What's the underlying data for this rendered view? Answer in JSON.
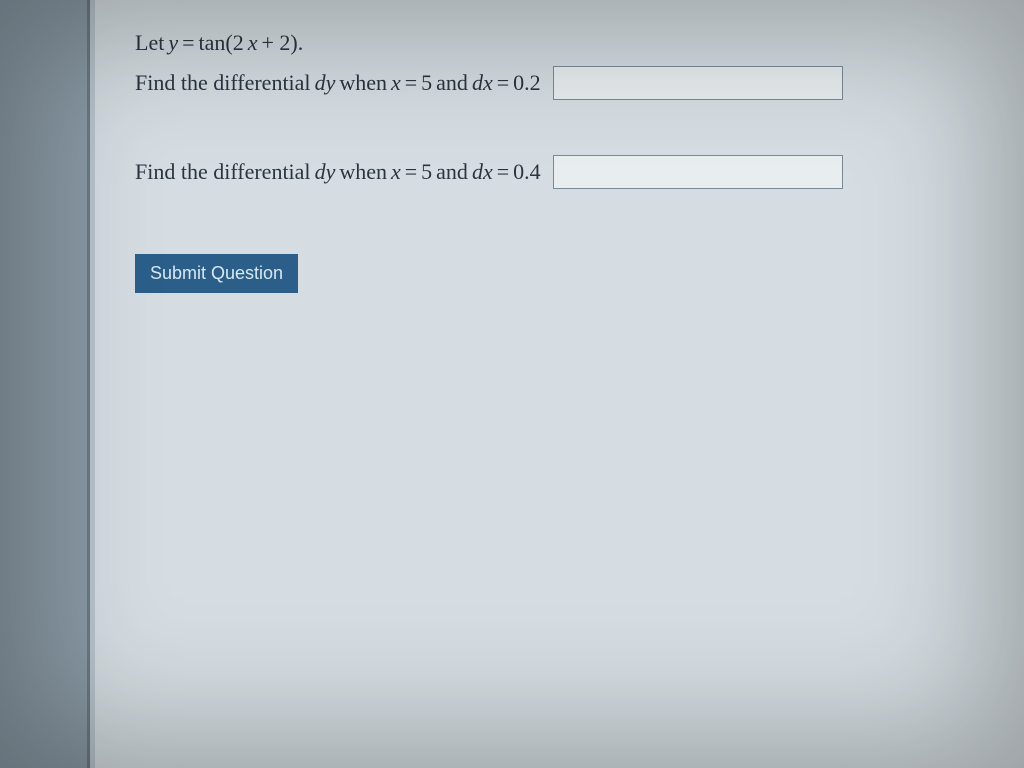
{
  "colors": {
    "page_bg": "#b8c4cc",
    "sidebar_bg": "#8a9aa5",
    "sidebar_border": "#6b7a85",
    "panel_bg": "#d5dde2",
    "text": "#2a3540",
    "input_border": "#7a8a95",
    "input_bg": "#e8edf0",
    "button_bg": "#2b5f8a",
    "button_text": "#d8e8f0"
  },
  "question": {
    "line1": {
      "prefix": "Let ",
      "var_y": "y",
      "eq": " = ",
      "func": "tan(2",
      "var_x": "x",
      "suffix": " + 2)."
    },
    "prompt1": {
      "prefix": "Find the differential ",
      "dy": "dy",
      "mid1": " when ",
      "x": "x",
      "eq1": " = ",
      "xval": "5",
      "mid2": " and ",
      "dx": "dx",
      "eq2": " = ",
      "dxval": "0.2"
    },
    "prompt2": {
      "prefix": "Find the differential ",
      "dy": "dy",
      "mid1": " when ",
      "x": "x",
      "eq1": " = ",
      "xval": "5",
      "mid2": " and ",
      "dx": "dx",
      "eq2": " = ",
      "dxval": "0.4"
    }
  },
  "inputs": {
    "answer1": "",
    "answer2": ""
  },
  "button": {
    "submit_label": "Submit Question"
  }
}
